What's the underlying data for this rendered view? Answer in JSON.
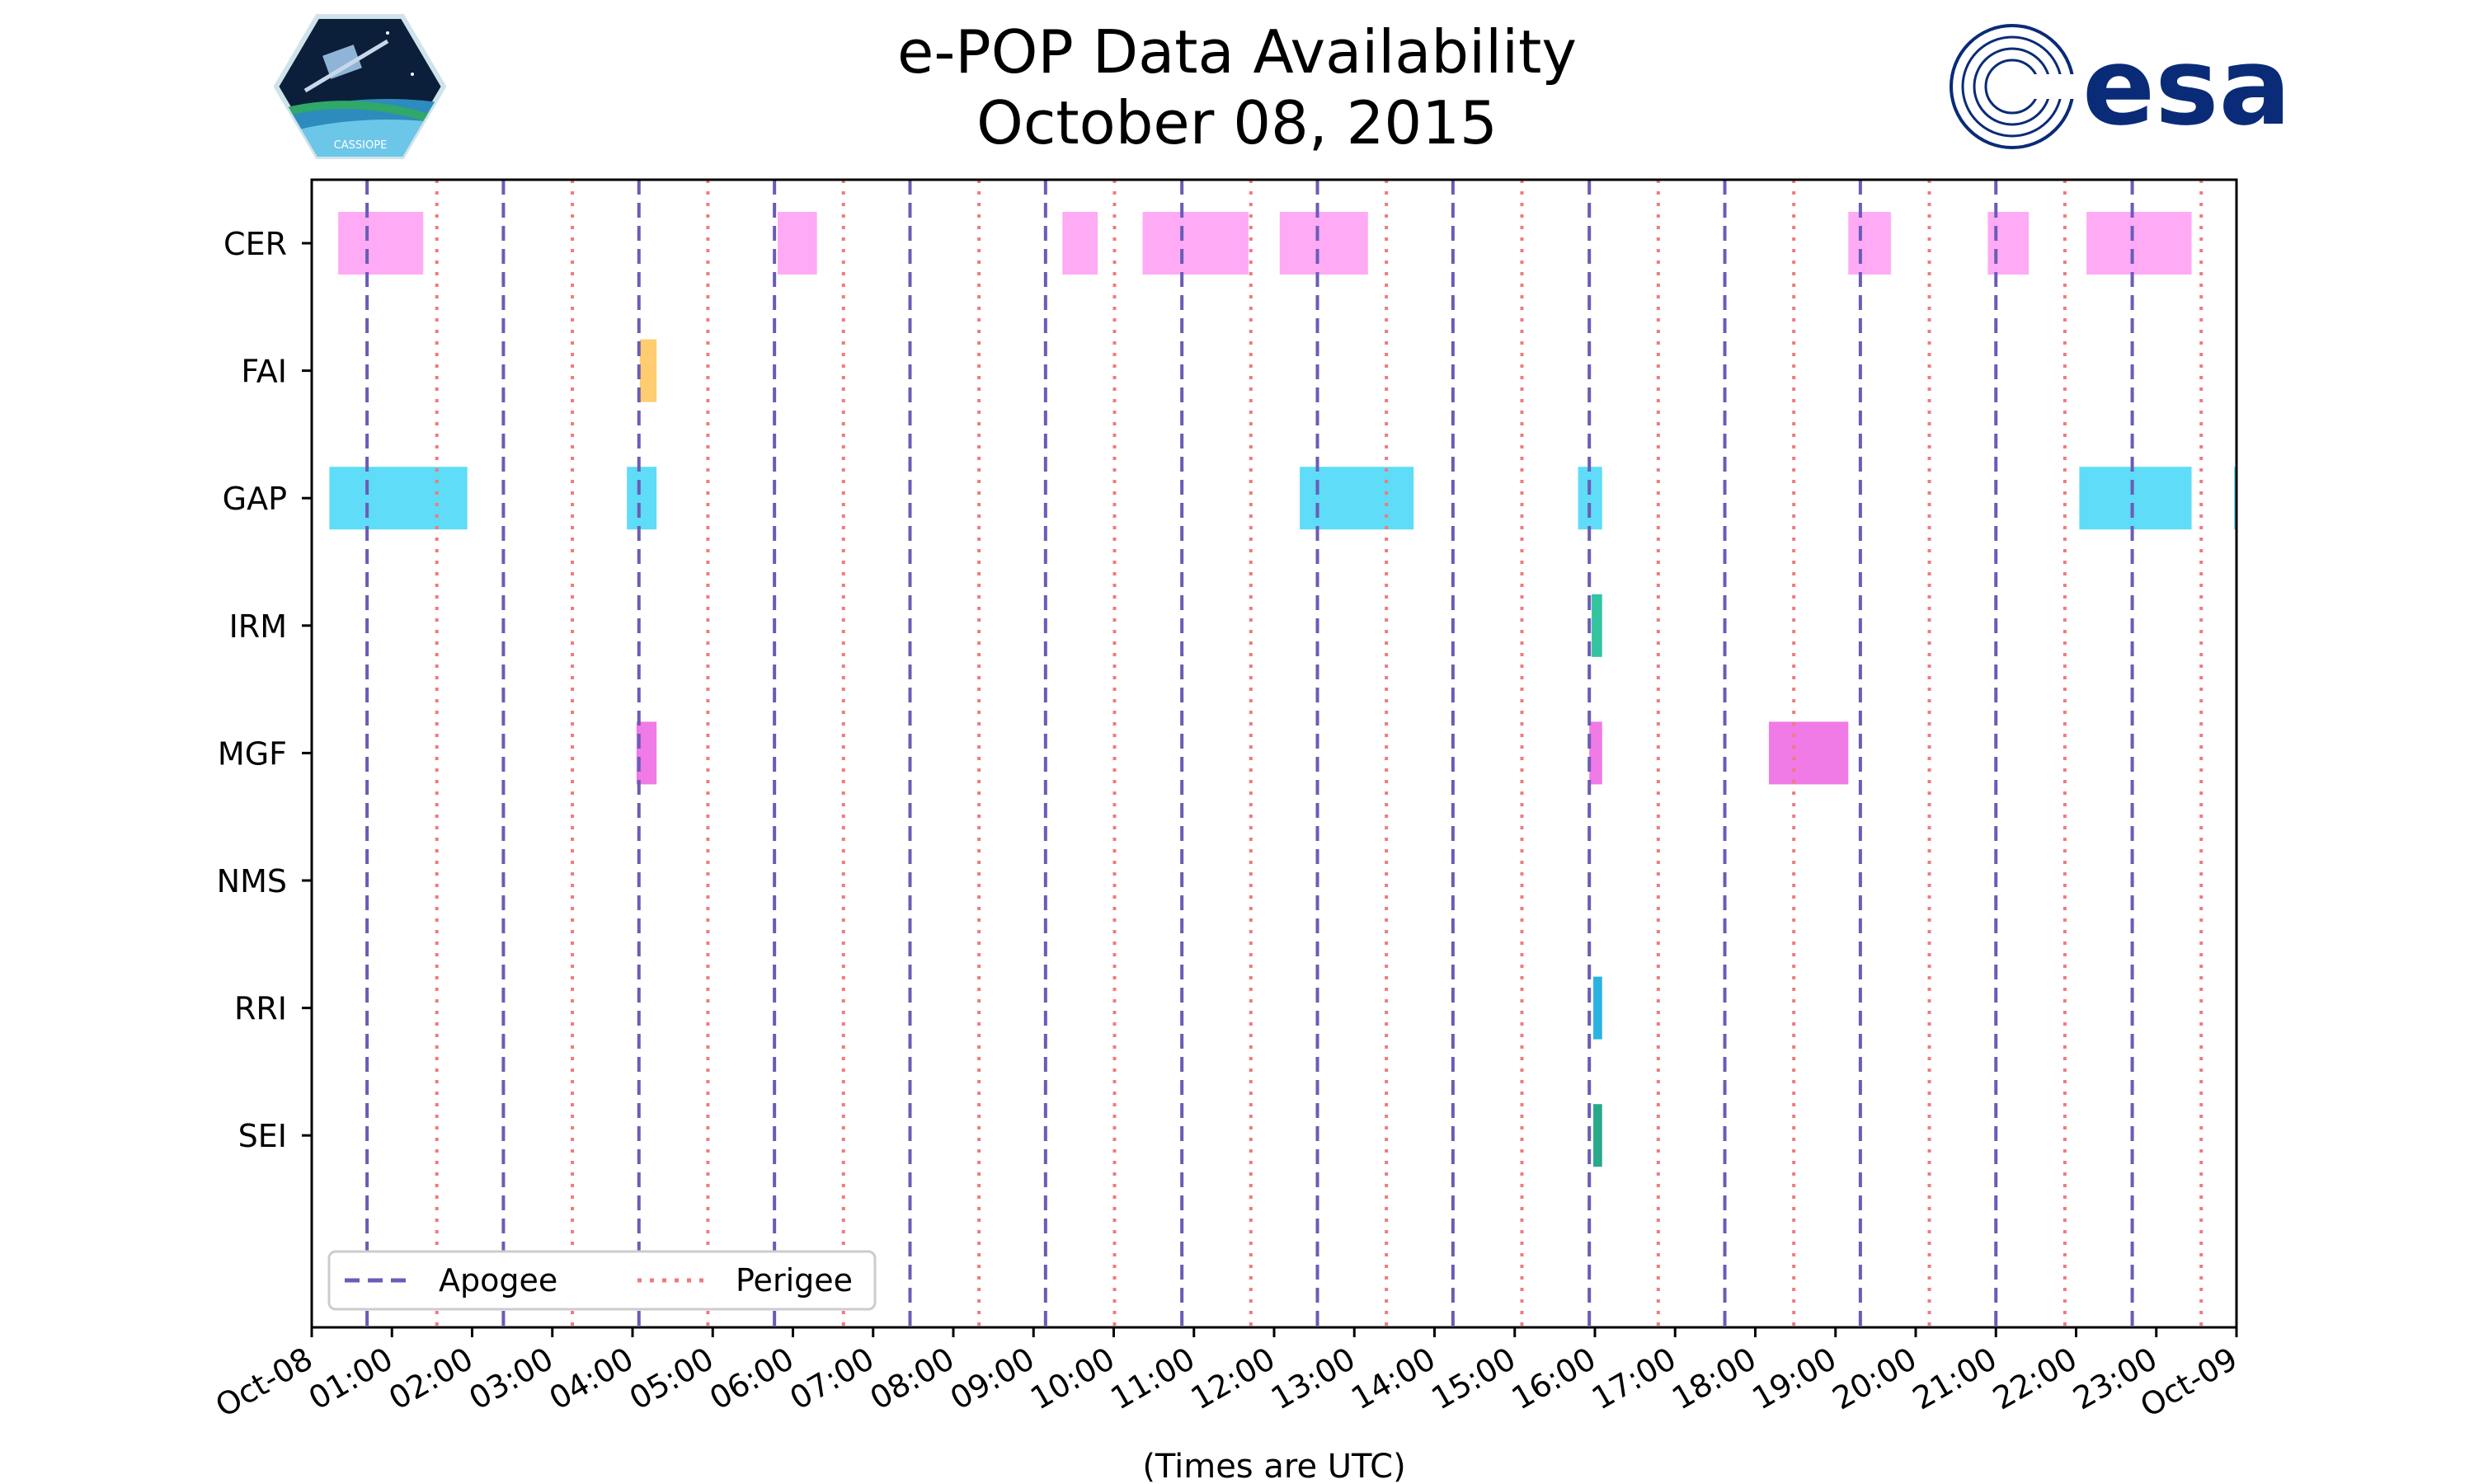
{
  "chart_data": {
    "type": "timeline",
    "title": "e-POP Data Availability",
    "subtitle": "October 08, 2015",
    "xlabel": "(Times are UTC)",
    "xlim_hours": [
      0,
      24
    ],
    "x_tick_labels": [
      "Oct-08",
      "01:00",
      "02:00",
      "03:00",
      "04:00",
      "05:00",
      "06:00",
      "07:00",
      "08:00",
      "09:00",
      "10:00",
      "11:00",
      "12:00",
      "13:00",
      "14:00",
      "15:00",
      "16:00",
      "17:00",
      "18:00",
      "19:00",
      "20:00",
      "21:00",
      "22:00",
      "23:00",
      "Oct-09"
    ],
    "instruments": [
      "CER",
      "FAI",
      "GAP",
      "IRM",
      "MGF",
      "NMS",
      "RRI",
      "SEI"
    ],
    "colors": {
      "CER": "#ffaaf5",
      "FAI": "#ffcc70",
      "GAP": "#5fdcf7",
      "IRM": "#33c4a0",
      "MGF": "#f07ae6",
      "RRI": "#29b3e0",
      "SEI": "#2aa88a",
      "apogee": "#6a5cb7",
      "perigee": "#f07b7b"
    },
    "intervals": [
      {
        "instrument": "CER",
        "start": 0.33,
        "end": 1.39
      },
      {
        "instrument": "CER",
        "start": 5.81,
        "end": 6.3
      },
      {
        "instrument": "CER",
        "start": 9.36,
        "end": 9.8
      },
      {
        "instrument": "CER",
        "start": 10.36,
        "end": 11.68
      },
      {
        "instrument": "CER",
        "start": 12.07,
        "end": 13.17
      },
      {
        "instrument": "CER",
        "start": 19.16,
        "end": 19.69
      },
      {
        "instrument": "CER",
        "start": 20.9,
        "end": 21.41
      },
      {
        "instrument": "CER",
        "start": 22.13,
        "end": 23.44
      },
      {
        "instrument": "FAI",
        "start": 4.09,
        "end": 4.3
      },
      {
        "instrument": "GAP",
        "start": 0.22,
        "end": 1.94
      },
      {
        "instrument": "GAP",
        "start": 3.93,
        "end": 4.3
      },
      {
        "instrument": "GAP",
        "start": 12.32,
        "end": 13.74
      },
      {
        "instrument": "GAP",
        "start": 15.79,
        "end": 16.09
      },
      {
        "instrument": "GAP",
        "start": 22.04,
        "end": 23.44
      },
      {
        "instrument": "GAP",
        "start": 23.97,
        "end": 24.0
      },
      {
        "instrument": "IRM",
        "start": 15.96,
        "end": 16.09
      },
      {
        "instrument": "MGF",
        "start": 4.05,
        "end": 4.3
      },
      {
        "instrument": "MGF",
        "start": 15.93,
        "end": 16.09
      },
      {
        "instrument": "MGF",
        "start": 18.17,
        "end": 19.16
      },
      {
        "instrument": "RRI",
        "start": 15.98,
        "end": 16.09
      },
      {
        "instrument": "SEI",
        "start": 15.98,
        "end": 16.09
      }
    ],
    "apogee_hours": [
      0.69,
      2.39,
      4.08,
      5.77,
      7.46,
      9.15,
      10.85,
      12.54,
      14.23,
      15.93,
      17.62,
      19.31,
      21.0,
      22.7
    ],
    "perigee_hours": [
      1.56,
      3.25,
      4.94,
      6.63,
      8.32,
      10.01,
      11.71,
      13.4,
      15.09,
      16.79,
      18.48,
      20.17,
      21.86,
      23.56
    ],
    "legend": {
      "apogee": "Apogee",
      "perigee": "Perigee",
      "position": "lower-left"
    }
  },
  "logos": {
    "left": "CASSIOPE",
    "right": "esa"
  }
}
